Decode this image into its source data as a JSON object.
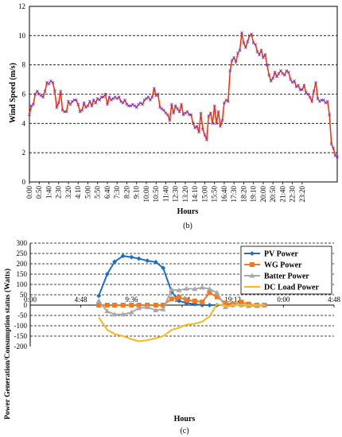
{
  "chart_data": [
    {
      "type": "line",
      "caption": "(b)",
      "xlabel": "Hours",
      "ylabel": "Wind Speed (m/s)",
      "ylim": [
        0,
        12
      ],
      "yticks": [
        0,
        2,
        4,
        6,
        8,
        10,
        12
      ],
      "grid": true,
      "x_tick_labels": [
        "0:00",
        "0:50",
        "1:40",
        "2:30",
        "3:20",
        "4:10",
        "5:00",
        "5:50",
        "6:40",
        "7:30",
        "8:20",
        "9:10",
        "10:00",
        "10:50",
        "11:40",
        "12:30",
        "13:20",
        "14:10",
        "15:00",
        "15:50",
        "16:40",
        "17:30",
        "18:20",
        "19:10",
        "20:00",
        "20:50",
        "21:40",
        "22:30",
        "23:20"
      ],
      "series": [
        {
          "color": "#ff2a00",
          "marker_color": "#7a3fbf",
          "x_step_minutes": 10,
          "values": [
            4.6,
            5.2,
            5.3,
            6.0,
            6.2,
            6.0,
            5.9,
            5.8,
            6.2,
            6.8,
            6.7,
            6.9,
            6.8,
            6.2,
            5.1,
            5.4,
            6.2,
            4.9,
            4.8,
            4.8,
            5.5,
            5.3,
            5.5,
            5.6,
            5.6,
            5.3,
            4.8,
            4.9,
            5.4,
            5.1,
            5.2,
            5.5,
            5.2,
            5.6,
            5.4,
            5.7,
            5.6,
            5.8,
            5.8,
            6.0,
            5.3,
            5.8,
            5.6,
            5.7,
            5.8,
            5.7,
            5.8,
            5.5,
            5.4,
            5.6,
            5.3,
            5.2,
            5.2,
            5.3,
            5.2,
            5.1,
            5.3,
            5.4,
            5.3,
            5.6,
            5.7,
            5.8,
            5.6,
            5.8,
            6.4,
            5.9,
            6.0,
            5.1,
            5.0,
            4.9,
            4.7,
            4.6,
            4.2,
            5.3,
            4.7,
            5.2,
            5.0,
            4.8,
            5.3,
            4.6,
            4.7,
            4.8,
            4.6,
            4.6,
            4.0,
            3.7,
            3.8,
            3.4,
            4.7,
            3.6,
            3.2,
            2.9,
            4.5,
            4.7,
            4.0,
            5.2,
            4.0,
            4.8,
            3.8,
            4.2,
            5.4,
            5.6,
            5.5,
            7.6,
            8.3,
            8.5,
            8.2,
            8.8,
            9.0,
            10.2,
            9.5,
            9.2,
            9.6,
            10.0,
            10.1,
            9.5,
            9.4,
            8.9,
            8.7,
            9.0,
            8.5,
            8.7,
            8.0,
            7.3,
            6.9,
            7.1,
            7.5,
            7.2,
            7.4,
            7.6,
            7.4,
            7.3,
            7.6,
            7.5,
            7.0,
            6.8,
            6.9,
            6.5,
            6.6,
            6.3,
            6.3,
            6.6,
            6.1,
            6.0,
            5.8,
            5.5,
            6.2,
            6.8,
            5.7,
            5.5,
            5.6,
            5.6,
            5.4,
            5.5,
            4.6,
            2.6,
            2.3,
            1.8,
            1.7
          ]
        }
      ]
    },
    {
      "type": "line",
      "caption": "(c)",
      "xlabel": "Hours",
      "ylabel": "Power Generation/Consumption status (Watts)",
      "ylim": [
        -200,
        300
      ],
      "yticks": [
        -200,
        -150,
        -100,
        -50,
        0,
        50,
        100,
        150,
        200,
        250,
        300
      ],
      "grid": true,
      "x_tick_labels": [
        "0:00",
        "4:48",
        "9:36",
        "14:24",
        "19:12",
        "0:00",
        "4:48"
      ],
      "x_range_hours": [
        0,
        28.8
      ],
      "legend_position": "top-right",
      "series": [
        {
          "name": "PV Power",
          "color": "#1f6fc2",
          "marker": "diamond",
          "x_hours": [
            6.5,
            7.3,
            8.0,
            8.8,
            9.6,
            10.3,
            11.1,
            11.9,
            12.6,
            13.4,
            14.1,
            14.8,
            15.6,
            16.3,
            17.0,
            17.7,
            18.5,
            19.2,
            20.0,
            20.7,
            21.5,
            22.2
          ],
          "values": [
            45,
            150,
            210,
            238,
            232,
            225,
            215,
            208,
            180,
            65,
            20,
            10,
            5,
            0,
            0,
            0,
            0,
            0,
            0,
            0,
            0,
            0
          ]
        },
        {
          "name": "WG Power",
          "color": "#f07a22",
          "marker": "square",
          "x_hours": [
            6.5,
            7.3,
            8.0,
            8.8,
            9.6,
            10.3,
            11.1,
            11.9,
            12.6,
            13.4,
            14.1,
            14.8,
            15.6,
            16.3,
            17.0,
            17.7,
            18.5,
            19.2,
            20.0,
            20.7,
            21.5,
            22.2
          ],
          "values": [
            0,
            0,
            0,
            0,
            0,
            0,
            0,
            0,
            0,
            30,
            38,
            25,
            20,
            15,
            60,
            40,
            10,
            5,
            15,
            5,
            0,
            0
          ]
        },
        {
          "name": "Batter Power",
          "color": "#a8a8a8",
          "marker": "triangle",
          "x_hours": [
            6.5,
            7.3,
            8.0,
            8.8,
            9.6,
            10.3,
            11.1,
            11.9,
            12.6,
            13.4,
            14.1,
            14.8,
            15.6,
            16.3,
            17.0,
            17.7,
            18.5,
            19.2,
            20.0,
            20.7,
            21.5,
            22.2
          ],
          "values": [
            20,
            -30,
            -45,
            -45,
            -35,
            -15,
            -10,
            -25,
            -20,
            75,
            72,
            80,
            78,
            85,
            78,
            60,
            -10,
            0,
            0,
            -5,
            -5,
            0
          ]
        },
        {
          "name": "DC Load Power",
          "color": "#f7b81e",
          "marker": "none",
          "x_hours": [
            6.5,
            7.3,
            8.0,
            8.8,
            9.6,
            10.3,
            11.1,
            11.9,
            12.6,
            13.4,
            14.1,
            14.8,
            15.6,
            16.3,
            17.0,
            17.7,
            18.5,
            19.2,
            20.0,
            20.7,
            21.5,
            22.2
          ],
          "values": [
            -60,
            -120,
            -140,
            -150,
            -165,
            -175,
            -170,
            -160,
            -150,
            -120,
            -110,
            -95,
            -90,
            -80,
            -55,
            5,
            -5,
            0,
            0,
            0,
            0,
            0
          ]
        }
      ]
    }
  ]
}
